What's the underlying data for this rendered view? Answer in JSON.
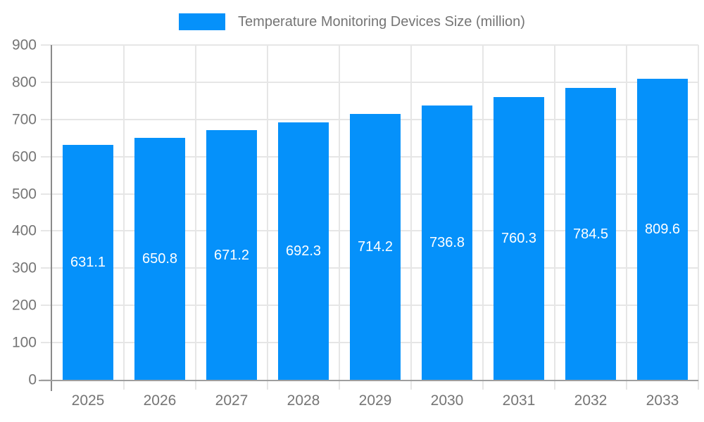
{
  "legend": {
    "label": "Temperature Monitoring Devices Size (million)"
  },
  "chart_data": {
    "type": "bar",
    "title": "Temperature Monitoring Devices Size (million)",
    "categories": [
      "2025",
      "2026",
      "2027",
      "2028",
      "2029",
      "2030",
      "2031",
      "2032",
      "2033"
    ],
    "values": [
      631.1,
      650.8,
      671.2,
      692.3,
      714.2,
      736.8,
      760.3,
      784.5,
      809.6
    ],
    "value_labels": [
      "631.1",
      "650.8",
      "671.2",
      "692.3",
      "714.2",
      "736.8",
      "760.3",
      "784.5",
      "809.6"
    ],
    "ytick_labels": [
      "0",
      "100",
      "200",
      "300",
      "400",
      "500",
      "600",
      "700",
      "800",
      "900"
    ],
    "ylim": [
      0,
      900
    ],
    "ytick_step": 100,
    "grid": true,
    "legend_position": "top",
    "colors": {
      "bar": "#0591fa",
      "grid": "#e6e6e6",
      "y_axis_line": "#8a8a8a",
      "x_axis_line": "#9e9e9e",
      "tick_label": "#757575",
      "legend_text": "#757575",
      "value_label": "#ffffff",
      "background": "#ffffff"
    }
  }
}
